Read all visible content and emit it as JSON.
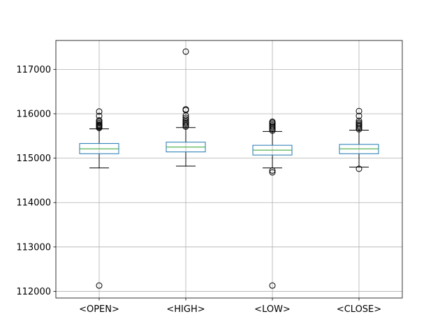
{
  "chart_data": {
    "type": "box",
    "title": "",
    "xlabel": "",
    "ylabel": "",
    "grid": true,
    "ylim": [
      111850,
      117650
    ],
    "yticks": [
      112000,
      113000,
      114000,
      115000,
      116000,
      117000
    ],
    "ytick_labels": [
      "112000",
      "113000",
      "114000",
      "115000",
      "116000",
      "117000"
    ],
    "categories": [
      "<OPEN>",
      "<HIGH>",
      "<LOW>",
      "<CLOSE>"
    ],
    "boxes": [
      {
        "name": "<OPEN>",
        "whisker_low": 114780,
        "q1": 115100,
        "median": 115210,
        "q3": 115330,
        "whisker_high": 115660,
        "fliers": [
          112130,
          115680,
          115700,
          115720,
          115740,
          115760,
          115790,
          115820,
          115850,
          115950,
          116050
        ]
      },
      {
        "name": "<HIGH>",
        "whisker_low": 114820,
        "q1": 115140,
        "median": 115250,
        "q3": 115360,
        "whisker_high": 115690,
        "fliers": [
          115710,
          115740,
          115770,
          115800,
          115830,
          115870,
          115910,
          115960,
          116080,
          116100,
          117400
        ]
      },
      {
        "name": "<LOW>",
        "whisker_low": 114780,
        "q1": 115070,
        "median": 115180,
        "q3": 115290,
        "whisker_high": 115600,
        "fliers": [
          112130,
          114680,
          114720,
          115620,
          115650,
          115680,
          115710,
          115740,
          115770,
          115800,
          115820
        ]
      },
      {
        "name": "<CLOSE>",
        "whisker_low": 114800,
        "q1": 115100,
        "median": 115210,
        "q3": 115310,
        "whisker_high": 115630,
        "fliers": [
          114760,
          115650,
          115680,
          115710,
          115740,
          115770,
          115800,
          115840,
          115950,
          116060
        ]
      }
    ],
    "colors": {
      "box": "#1f77b4",
      "median": "#2ca02c",
      "whisker": "#000000",
      "grid": "#b0b0b0",
      "axes": "#000000"
    }
  }
}
